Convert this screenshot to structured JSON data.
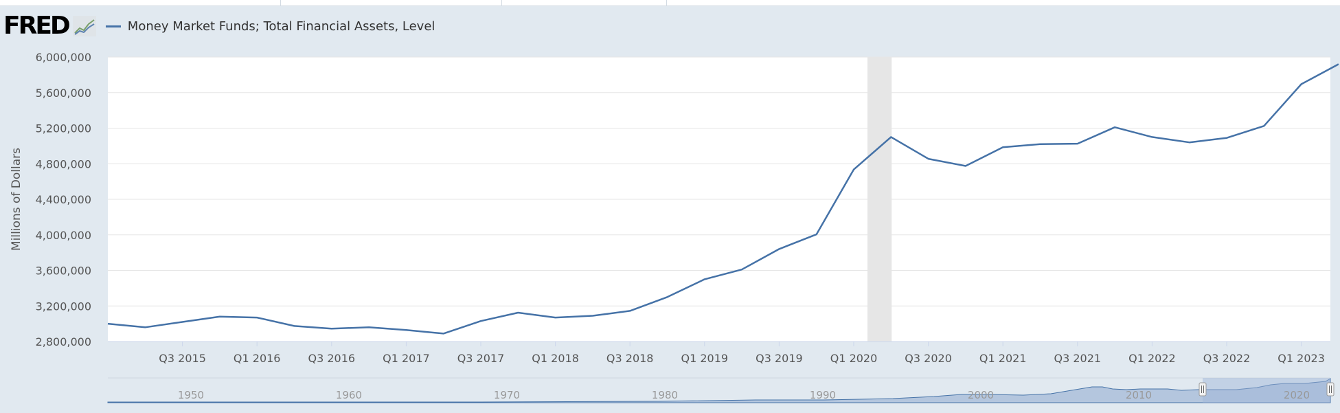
{
  "app": {
    "logo_text": "FRED"
  },
  "colors": {
    "series": "#4572a7",
    "recession": "#e6e6e6",
    "background": "#e1e9f0",
    "navigator_fill": "#8fa9cf",
    "navigator_mask": "#9db4d8"
  },
  "chart_data": {
    "type": "line",
    "title": "",
    "ylabel": "Millions of Dollars",
    "xlabel": "",
    "ylim": [
      2800000,
      6000000
    ],
    "yticks": [
      "6,000,000",
      "5,600,000",
      "5,200,000",
      "4,800,000",
      "4,400,000",
      "4,000,000",
      "3,600,000",
      "3,200,000",
      "2,800,000"
    ],
    "ytick_values": [
      6000000,
      5600000,
      5200000,
      4800000,
      4400000,
      4000000,
      3600000,
      3200000,
      2800000
    ],
    "xticks": [
      "Q3 2015",
      "Q1 2016",
      "Q3 2016",
      "Q1 2017",
      "Q3 2017",
      "Q1 2018",
      "Q3 2018",
      "Q1 2019",
      "Q3 2019",
      "Q1 2020",
      "Q3 2020",
      "Q1 2021",
      "Q3 2021",
      "Q1 2022",
      "Q3 2022",
      "Q1 2023"
    ],
    "grid": true,
    "legend_placement": "top-left",
    "recession": {
      "start": "2020-Q1",
      "end": "2020-Q2"
    },
    "series": [
      {
        "name": "Money Market Funds; Total Financial Assets, Level",
        "x": [
          "2015-Q1",
          "2015-Q2",
          "2015-Q3",
          "2015-Q4",
          "2016-Q1",
          "2016-Q2",
          "2016-Q3",
          "2016-Q4",
          "2017-Q1",
          "2017-Q2",
          "2017-Q3",
          "2017-Q4",
          "2018-Q1",
          "2018-Q2",
          "2018-Q3",
          "2018-Q4",
          "2019-Q1",
          "2019-Q2",
          "2019-Q3",
          "2019-Q4",
          "2020-Q1",
          "2020-Q2",
          "2020-Q3",
          "2020-Q4",
          "2021-Q1",
          "2021-Q2",
          "2021-Q3",
          "2021-Q4",
          "2022-Q1",
          "2022-Q2",
          "2022-Q3",
          "2022-Q4",
          "2023-Q1",
          "2023-Q2"
        ],
        "values": [
          3000000,
          2960000,
          3020000,
          3080000,
          3070000,
          2975000,
          2945000,
          2960000,
          2930000,
          2890000,
          3030000,
          3125000,
          3070000,
          3090000,
          3145000,
          3300000,
          3500000,
          3610000,
          3840000,
          4005000,
          4735000,
          5100000,
          4855000,
          4775000,
          4985000,
          5020000,
          5025000,
          5210000,
          5100000,
          5040000,
          5090000,
          5225000,
          5695000,
          5920000
        ]
      }
    ],
    "navigator": {
      "labels": [
        "1950",
        "1960",
        "1970",
        "1980",
        "1990",
        "2000",
        "2010",
        "2020"
      ]
    }
  }
}
